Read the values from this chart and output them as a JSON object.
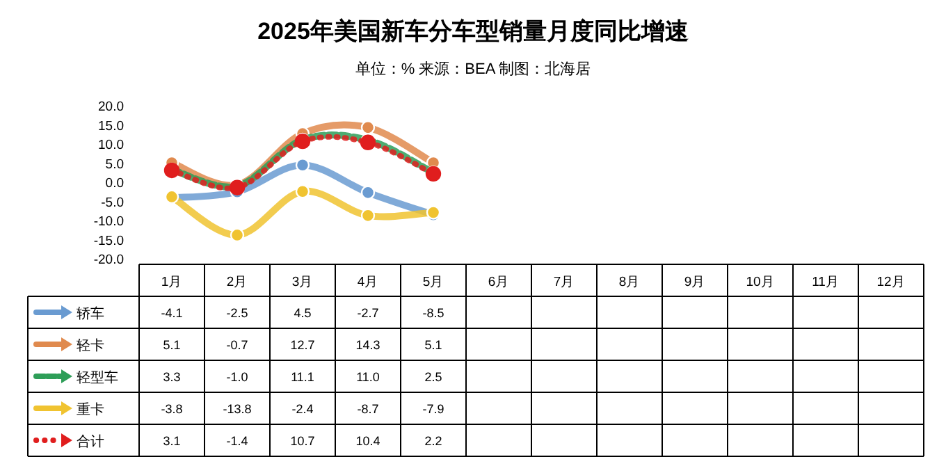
{
  "chart_data": {
    "type": "line",
    "title": "2025年美国新车分车型销量月度同比增速",
    "subtitle": "单位：% 来源：BEA 制图：北海居",
    "categories": [
      "1月",
      "2月",
      "3月",
      "4月",
      "5月",
      "6月",
      "7月",
      "8月",
      "9月",
      "10月",
      "11月",
      "12月"
    ],
    "series": [
      {
        "name": "轿车",
        "color": "#6a9bd1",
        "line_style": "solid",
        "values": [
          -4.1,
          -2.5,
          4.5,
          -2.7,
          -8.5,
          null,
          null,
          null,
          null,
          null,
          null,
          null
        ],
        "value_labels": [
          "-4.1",
          "-2.5",
          "4.5",
          "-2.7",
          "-8.5",
          null,
          null,
          null,
          null,
          null,
          null,
          null
        ]
      },
      {
        "name": "轻卡",
        "color": "#e08a4e",
        "line_style": "solid",
        "values": [
          5.1,
          -0.7,
          12.7,
          14.3,
          5.1,
          null,
          null,
          null,
          null,
          null,
          null,
          null
        ],
        "value_labels": [
          "5.1",
          "-0.7",
          "12.7",
          "14.3",
          "5.1",
          null,
          null,
          null,
          null,
          null,
          null,
          null
        ]
      },
      {
        "name": "轻型车",
        "color": "#2e9e58",
        "line_style": "dashed",
        "values": [
          3.3,
          -1.0,
          11.1,
          11.0,
          2.5,
          null,
          null,
          null,
          null,
          null,
          null,
          null
        ],
        "value_labels": [
          "3.3",
          "-1.0",
          "11.1",
          "11.0",
          "2.5",
          null,
          null,
          null,
          null,
          null,
          null,
          null
        ]
      },
      {
        "name": "重卡",
        "color": "#f0c330",
        "line_style": "solid",
        "values": [
          -3.8,
          -13.8,
          -2.4,
          -8.7,
          -7.9,
          null,
          null,
          null,
          null,
          null,
          null,
          null
        ],
        "value_labels": [
          "-3.8",
          "-13.8",
          "-2.4",
          "-8.7",
          "-7.9",
          null,
          null,
          null,
          null,
          null,
          null,
          null
        ]
      },
      {
        "name": "合计",
        "color": "#e01e1e",
        "line_style": "dotted",
        "values": [
          3.1,
          -1.4,
          10.7,
          10.4,
          2.2,
          null,
          null,
          null,
          null,
          null,
          null,
          null
        ],
        "value_labels": [
          "3.1",
          "-1.4",
          "10.7",
          "10.4",
          "2.2",
          null,
          null,
          null,
          null,
          null,
          null,
          null
        ]
      }
    ],
    "ylim": [
      -20,
      20
    ],
    "yticks": [
      {
        "value": -20,
        "label": "-20.0"
      },
      {
        "value": -15,
        "label": "-15.0"
      },
      {
        "value": -10,
        "label": "-10.0"
      },
      {
        "value": -5,
        "label": "-5.0"
      },
      {
        "value": 0,
        "label": "0.0"
      },
      {
        "value": 5,
        "label": "5.0"
      },
      {
        "value": 10,
        "label": "10.0"
      },
      {
        "value": 15,
        "label": "15.0"
      },
      {
        "value": 20,
        "label": "20.0"
      }
    ],
    "marker": "circle",
    "legend": "bottom",
    "grid": false
  }
}
